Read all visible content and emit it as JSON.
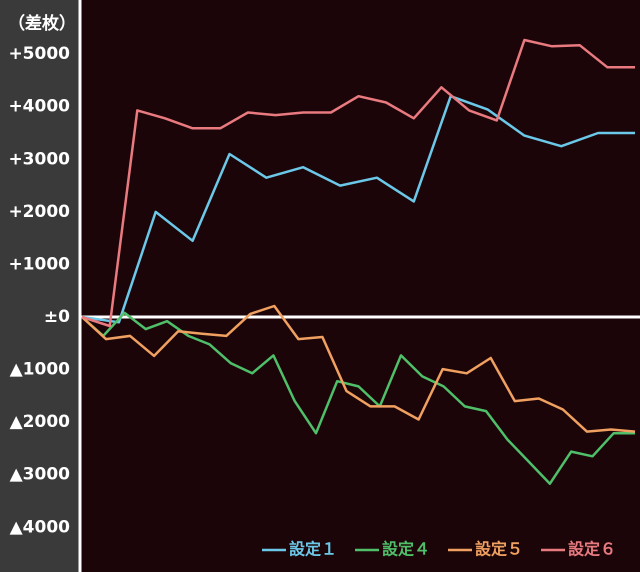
{
  "chart_data": {
    "type": "line",
    "y_label": "（差枚）",
    "ylim": [
      -4850,
      6030
    ],
    "yticks": [
      {
        "value": 5000,
        "label": "+5000"
      },
      {
        "value": 4000,
        "label": "+4000"
      },
      {
        "value": 3000,
        "label": "+3000"
      },
      {
        "value": 2000,
        "label": "+2000"
      },
      {
        "value": 1000,
        "label": "+1000"
      },
      {
        "value": 0,
        "label": "±0"
      },
      {
        "value": -1000,
        "label": "▲1000"
      },
      {
        "value": -2000,
        "label": "▲2000"
      },
      {
        "value": -3000,
        "label": "▲3000"
      },
      {
        "value": -4000,
        "label": "▲4000"
      }
    ],
    "zero_line": true,
    "legend": "bottom-right",
    "series": [
      {
        "name": "設定１",
        "color": "#6cc8e8",
        "values": [
          0,
          -100,
          2000,
          1450,
          3100,
          2650,
          2850,
          2500,
          2650,
          2200,
          4200,
          3950,
          3450,
          3250,
          3500,
          3500
        ]
      },
      {
        "name": "設定４",
        "color": "#4fbf6a",
        "values": [
          0,
          -360,
          80,
          -230,
          -80,
          -360,
          -520,
          -880,
          -1070,
          -730,
          -1600,
          -2210,
          -1220,
          -1320,
          -1700,
          -730,
          -1130,
          -1320,
          -1700,
          -1790,
          -2330,
          -2750,
          -3170,
          -2560,
          -2650,
          -2210,
          -2210
        ]
      },
      {
        "name": "設定５",
        "color": "#f0a060",
        "values": [
          0,
          -420,
          -360,
          -740,
          -270,
          -320,
          -360,
          60,
          210,
          -420,
          -380,
          -1410,
          -1700,
          -1700,
          -1950,
          -990,
          -1070,
          -780,
          -1600,
          -1550,
          -1760,
          -2180,
          -2140,
          -2180
        ]
      },
      {
        "name": "設定６",
        "color": "#e87a80",
        "values": [
          0,
          -170,
          3930,
          3780,
          3590,
          3590,
          3890,
          3840,
          3890,
          3890,
          4200,
          4080,
          3780,
          4370,
          3930,
          3740,
          5270,
          5150,
          5170,
          4750,
          4750
        ]
      }
    ]
  }
}
